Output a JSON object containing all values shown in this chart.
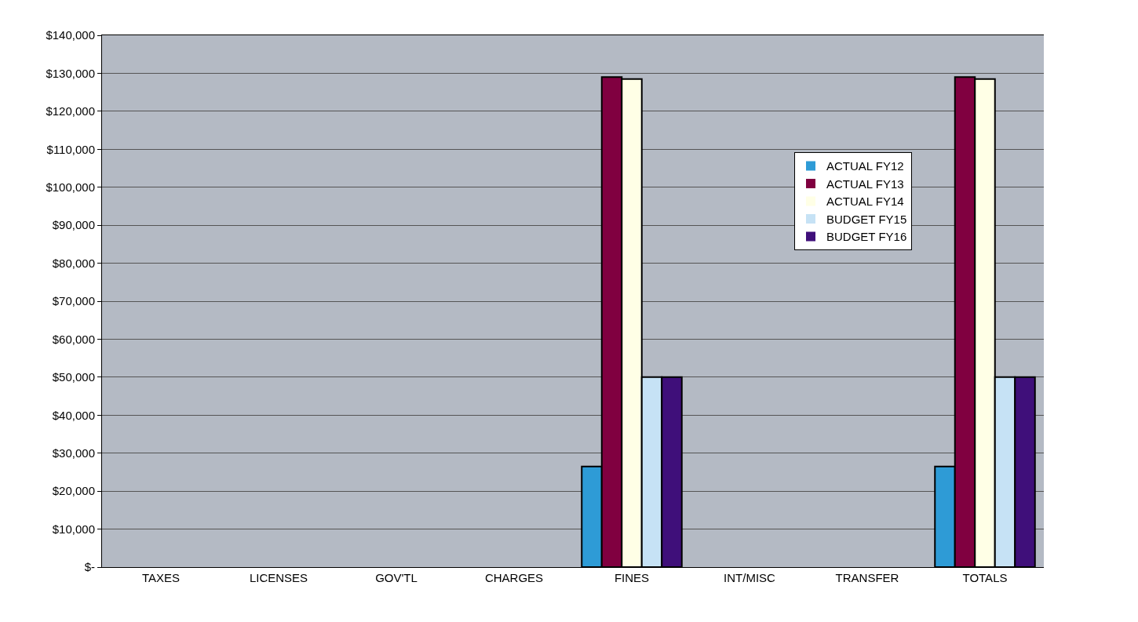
{
  "chart_data": {
    "type": "bar",
    "categories": [
      "TAXES",
      "LICENSES",
      "GOV'TL",
      "CHARGES",
      "FINES",
      "INT/MISC",
      "TRANSFER",
      "TOTALS"
    ],
    "series": [
      {
        "name": "ACTUAL FY12",
        "color": "#2e9bd6",
        "values": [
          0,
          0,
          0,
          0,
          26500,
          0,
          0,
          26500
        ]
      },
      {
        "name": "ACTUAL FY13",
        "color": "#800040",
        "values": [
          0,
          0,
          0,
          0,
          129000,
          0,
          0,
          129000
        ]
      },
      {
        "name": "ACTUAL FY14",
        "color": "#ffffe6",
        "values": [
          0,
          0,
          0,
          0,
          128500,
          0,
          0,
          128500
        ]
      },
      {
        "name": "BUDGET FY15",
        "color": "#c6e2f5",
        "values": [
          0,
          0,
          0,
          0,
          50000,
          0,
          0,
          50000
        ]
      },
      {
        "name": "BUDGET FY16",
        "color": "#3f0f7a",
        "values": [
          0,
          0,
          0,
          0,
          50000,
          0,
          0,
          50000
        ]
      }
    ],
    "ylim": [
      0,
      140000
    ],
    "yticks": [
      {
        "value": 0,
        "label": "$-"
      },
      {
        "value": 10000,
        "label": "$10,000"
      },
      {
        "value": 20000,
        "label": "$20,000"
      },
      {
        "value": 30000,
        "label": "$30,000"
      },
      {
        "value": 40000,
        "label": "$40,000"
      },
      {
        "value": 50000,
        "label": "$50,000"
      },
      {
        "value": 60000,
        "label": "$60,000"
      },
      {
        "value": 70000,
        "label": "$70,000"
      },
      {
        "value": 80000,
        "label": "$80,000"
      },
      {
        "value": 90000,
        "label": "$90,000"
      },
      {
        "value": 100000,
        "label": "$100,000"
      },
      {
        "value": 110000,
        "label": "$110,000"
      },
      {
        "value": 120000,
        "label": "$120,000"
      },
      {
        "value": 130000,
        "label": "$130,000"
      },
      {
        "value": 140000,
        "label": "$140,000"
      }
    ],
    "grid": "y",
    "legend": "right"
  }
}
